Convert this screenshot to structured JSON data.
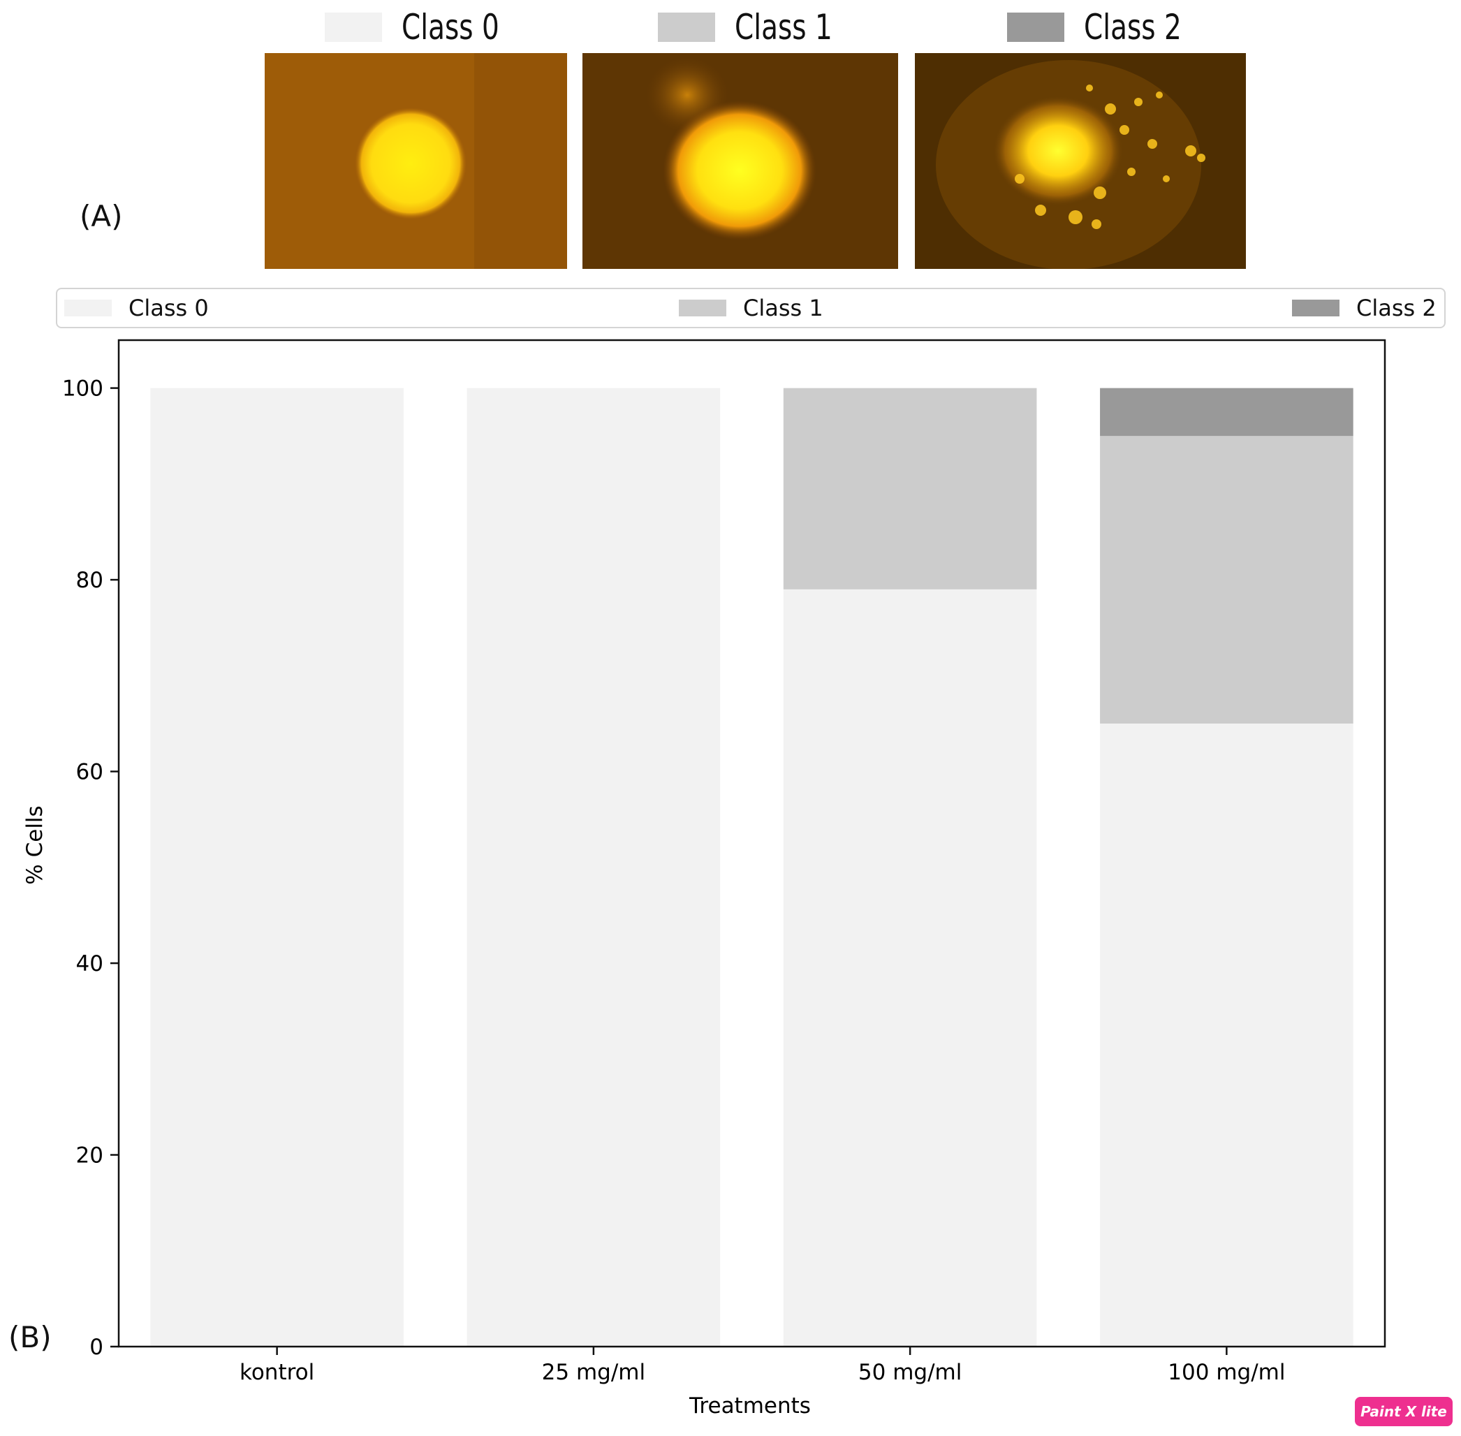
{
  "panel_a": {
    "label": "(A)",
    "legend": [
      {
        "label": "Class 0",
        "color": "#f2f2f2"
      },
      {
        "label": "Class 1",
        "color": "#cccccc"
      },
      {
        "label": "Class 2",
        "color": "#999999"
      }
    ],
    "images": [
      "class-0-comet-cell",
      "class-1-comet-cell",
      "class-2-comet-cell"
    ]
  },
  "panel_b": {
    "label": "(B)"
  },
  "chart_data": {
    "type": "bar",
    "stacked": true,
    "categories": [
      "kontrol",
      "25 mg/ml",
      "50 mg/ml",
      "100 mg/ml"
    ],
    "series": [
      {
        "name": "Class 0",
        "color": "#f2f2f2",
        "values": [
          100,
          100,
          79,
          65
        ]
      },
      {
        "name": "Class 1",
        "color": "#cccccc",
        "values": [
          0,
          0,
          21,
          30
        ]
      },
      {
        "name": "Class 2",
        "color": "#999999",
        "values": [
          0,
          0,
          0,
          5
        ]
      }
    ],
    "xlabel": "Treatments",
    "ylabel": "% Cells",
    "ylim": [
      0,
      105
    ],
    "yticks": [
      0,
      20,
      40,
      60,
      80,
      100
    ],
    "grid": false,
    "legend_position": "top"
  },
  "watermark": {
    "text": "Paint X lite"
  }
}
